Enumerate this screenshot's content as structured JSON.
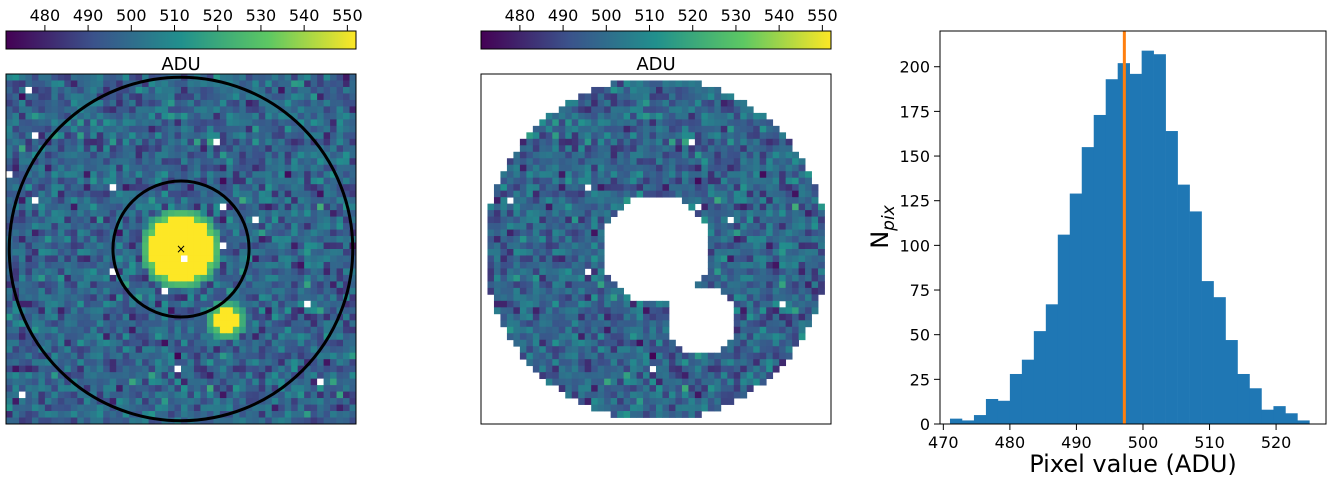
{
  "chart_data": [
    {
      "type": "heatmap",
      "panel": "full-image",
      "title": "",
      "colorbar": {
        "label": "ADU",
        "ticks": [
          480,
          490,
          500,
          510,
          520,
          530,
          540,
          550
        ],
        "range": [
          471,
          552
        ],
        "colormap": [
          "#440154",
          "#3b528b",
          "#21908d",
          "#5dc863",
          "#fde725"
        ]
      },
      "grid": {
        "cols": 54,
        "rows": 54
      },
      "background": {
        "mean": 497,
        "sd": 8
      },
      "sources": [
        {
          "name": "target",
          "x": 26.5,
          "y": 26.5,
          "radius_px": 5.0,
          "peak": 552
        },
        {
          "name": "companion",
          "x": 33.5,
          "y": 37.5,
          "radius_px": 1.6,
          "peak": 552
        }
      ],
      "apertures": {
        "center": [
          26.5,
          26.5
        ],
        "inner_radius": 10.5,
        "outer_radius": 26.5
      },
      "marker": {
        "symbol": "×",
        "color": "#d62728",
        "x": 26.5,
        "y": 26.5
      }
    },
    {
      "type": "heatmap",
      "panel": "annulus",
      "title": "",
      "colorbar": {
        "label": "ADU",
        "ticks": [
          480,
          490,
          500,
          510,
          520,
          530,
          540,
          550
        ],
        "range": [
          471,
          552
        ]
      },
      "description": "sky annulus pixels with masked sources"
    },
    {
      "type": "bar",
      "panel": "histogram",
      "title": "",
      "xlabel": "Pixel value (ADU)",
      "ylabel": "N",
      "ylabel_sub": "pix",
      "xlim": [
        469.5,
        527.5
      ],
      "ylim": [
        0,
        220
      ],
      "xticks": [
        470,
        480,
        490,
        500,
        510,
        520
      ],
      "yticks": [
        0,
        25,
        50,
        75,
        100,
        125,
        150,
        175,
        200
      ],
      "bin_start": 471.0,
      "bin_width": 1.8,
      "values": [
        3,
        2,
        5,
        14,
        13,
        28,
        36,
        52,
        67,
        106,
        129,
        155,
        173,
        193,
        202,
        196,
        209,
        207,
        164,
        134,
        119,
        80,
        71,
        47,
        28,
        20,
        8,
        10,
        6,
        2
      ],
      "bar_color": "#1f77b4",
      "vline": {
        "x": 497.2,
        "color": "#ff7f0e"
      }
    }
  ]
}
